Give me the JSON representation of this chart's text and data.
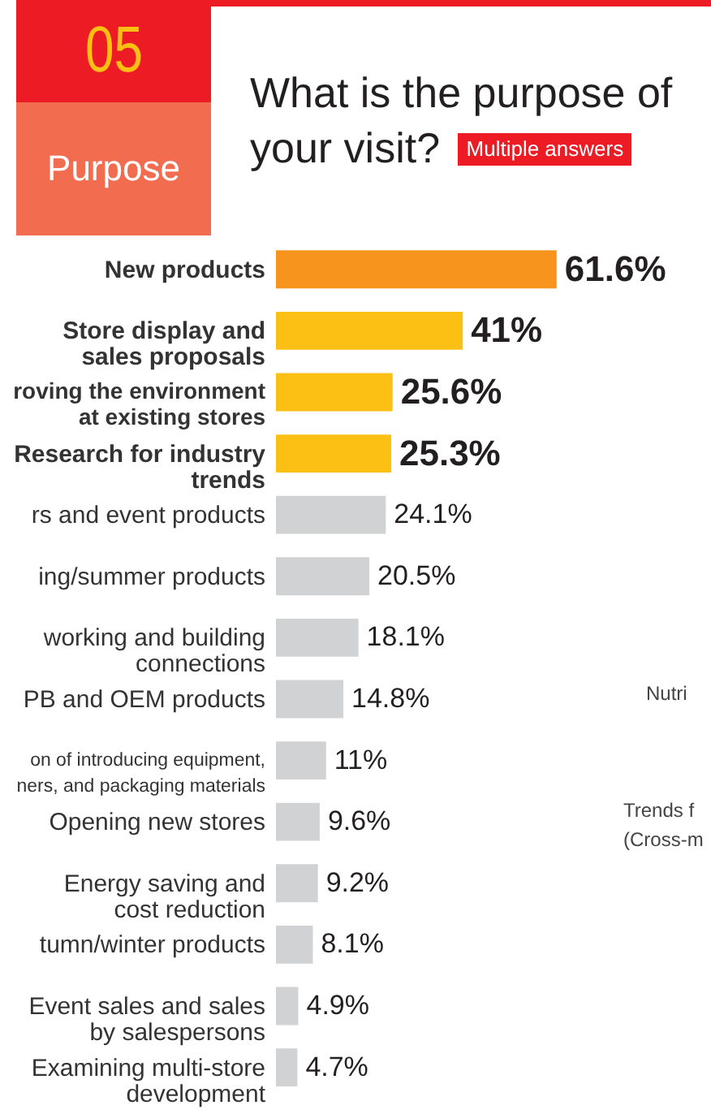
{
  "chart_data": {
    "type": "bar",
    "orientation": "horizontal",
    "title": "What is the purpose of your visit?",
    "subtitle": "Multiple answers",
    "annotations": [
      "05",
      "Purpose",
      "Nutri",
      "Trends f\n(Cross-m"
    ],
    "categories": [
      "New products",
      "Store display and\nsales proposals",
      "roving the environment\nat existing stores",
      "Research for industry\ntrends",
      "rs and event products",
      "ing/summer products",
      "working and building\nconnections",
      "PB and OEM products",
      "on of introducing equipment,\nners, and packaging materials",
      "Opening new stores",
      "Energy saving and\ncost reduction",
      "tumn/winter products",
      "Event sales and sales\nby salespersons",
      "Examining multi-store\ndevelopment"
    ],
    "values": [
      61.6,
      41,
      25.6,
      25.3,
      24.1,
      20.5,
      18.1,
      14.8,
      11,
      9.6,
      9.2,
      8.1,
      4.9,
      4.7
    ],
    "colors": [
      "#f7941d",
      "#fcc015",
      "#fcc015",
      "#fcc015",
      "#d1d2d4",
      "#d1d2d4",
      "#d1d2d4",
      "#d1d2d4",
      "#d1d2d4",
      "#d1d2d4",
      "#d1d2d4",
      "#d1d2d4",
      "#d1d2d4",
      "#d1d2d4"
    ],
    "value_labels": [
      "61.6%",
      "41%",
      "25.6%",
      "25.3%",
      "24.1%",
      "20.5%",
      "18.1%",
      "14.8%",
      "11%",
      "9.6%",
      "9.2%",
      "8.1%",
      "4.9%",
      "4.7%"
    ]
  }
}
